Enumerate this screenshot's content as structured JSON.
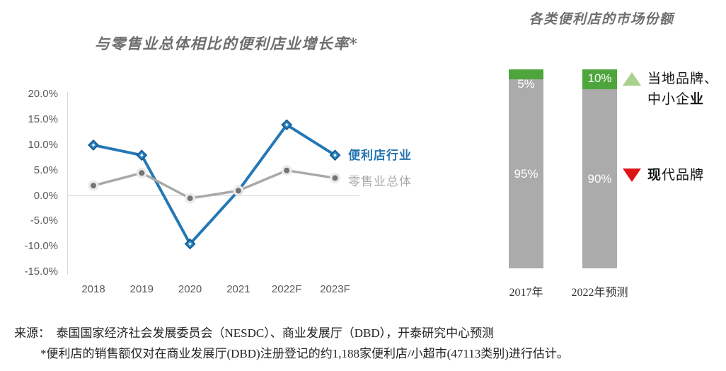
{
  "chart_data": [
    {
      "type": "line",
      "title": "与零售业总体相比的便利店业增长率*",
      "categories": [
        "2018",
        "2019",
        "2020",
        "2021",
        "2022F",
        "2023F"
      ],
      "series": [
        {
          "name": "便利店行业",
          "label_regular": "便利店行",
          "label_emph": "业",
          "values": [
            10,
            8,
            -9.5,
            1,
            14,
            8
          ],
          "color": "#2578B5",
          "marker": "diamond",
          "marker_fill": "#2E8FD0",
          "marker_edge": "#1A5A8F"
        },
        {
          "name": "零售业总体",
          "values": [
            2,
            4.5,
            -0.5,
            1,
            5,
            3.5
          ],
          "color": "#A9A9A9",
          "marker": "circle",
          "marker_fill": "#747474",
          "marker_ring": "#EAEAEA"
        }
      ],
      "y_ticks": [
        {
          "label": "20.0%",
          "value": 20
        },
        {
          "label": "15.0%",
          "value": 15
        },
        {
          "label": "10.0%",
          "value": 10
        },
        {
          "label": "5.0%",
          "value": 5
        },
        {
          "label": "0.0%",
          "value": 0
        },
        {
          "label": "-5.0%",
          "value": -5
        },
        {
          "label": "-10.0%",
          "value": -10
        },
        {
          "label": "-15.0%",
          "value": -15
        }
      ],
      "ylim": [
        -15,
        20
      ],
      "grid": "zero-line-only",
      "axis_color": "#D9D9D9",
      "legend_position": "right-of-line-ends"
    },
    {
      "type": "stacked-bar",
      "title": "各类便利店的市场份额",
      "categories": [
        "2017年",
        "2022年预测"
      ],
      "series": [
        {
          "name": "现代品牌",
          "values": [
            95,
            90
          ],
          "labels": [
            "95%",
            "90%"
          ],
          "color": "#ABABAB"
        },
        {
          "name": "当地品牌、中小企业",
          "values": [
            5,
            10
          ],
          "labels": [
            "5%",
            "10%"
          ],
          "color": "#4DA53C"
        }
      ],
      "ylim": [
        0,
        100
      ],
      "legend": [
        {
          "marker": "triangle-up",
          "marker_color": "#A9D18E",
          "line1": "当地品牌、",
          "line2_regular": "中小企",
          "line2_emph": "业"
        },
        {
          "marker": "triangle-down",
          "marker_color": "#DE1414",
          "emph": "现",
          "regular": "代品牌"
        }
      ]
    }
  ],
  "footer": {
    "line1": "来源：  泰国国家经济社会发展委员会（NESDC）、商业发展厅（DBD），开泰研究中心预测",
    "line2": "*便利店的销售额仅对在商业发展厅(DBD)注册登记的约1,188家便利店/小超市(47113类别)进行估计。"
  }
}
